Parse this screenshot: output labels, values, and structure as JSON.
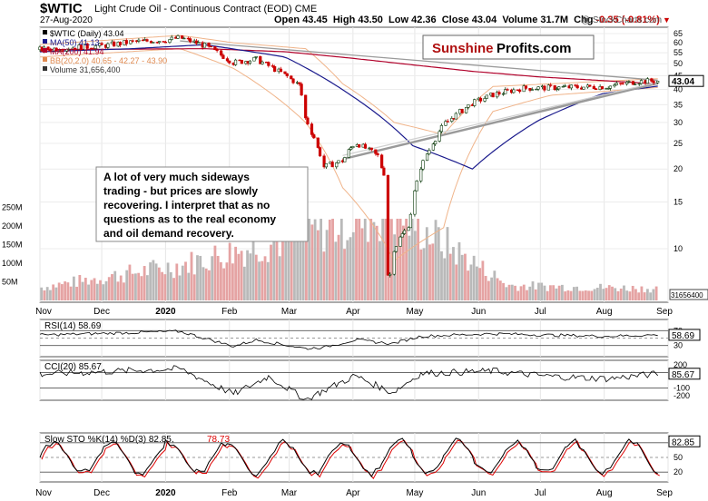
{
  "header": {
    "symbol": "$WTIC",
    "name": "Light Crude Oil - Continuous Contract (EOD)",
    "exchange": "CME",
    "date": "27-Aug-2020",
    "open_label": "Open",
    "open": "43.45",
    "high_label": "High",
    "high": "43.50",
    "low_label": "Low",
    "low": "42.36",
    "close_label": "Close",
    "close": "43.04",
    "volume_label": "Volume",
    "volume": "31.7M",
    "chg_label": "Chg",
    "chg": "-0.35 (-0.81%)",
    "copyright": "@ StockCharts.com"
  },
  "logo": {
    "part1": "Sunshine",
    "part2": "Profits.com"
  },
  "annotation": {
    "lines": [
      "A lot of very much sideways",
      "trading - but prices are slowly",
      "recovering. I interpret that as no",
      "questions as to the real economy",
      "and oil demand recovery."
    ]
  },
  "legend": [
    {
      "text": "$WTIC (Daily) 43.04",
      "color": "#000000"
    },
    {
      "text": "MA(50) 41.13",
      "color": "#1a1a8c"
    },
    {
      "text": "MA(200) 41.94",
      "color": "#b0002a"
    },
    {
      "text": "BB(20,2.0) 40.65 - 42.27 - 43.90",
      "color": "#e08a50"
    },
    {
      "text": "Volume 31,656,400",
      "color": "#333333"
    }
  ],
  "price_axis": {
    "ticks": [
      "65",
      "60",
      "55",
      "50",
      "45",
      "40",
      "35",
      "30",
      "25",
      "20",
      "15",
      "10"
    ],
    "last": "43.04"
  },
  "volume_axis": {
    "ticks": [
      "250M",
      "200M",
      "150M",
      "100M",
      "50M"
    ],
    "last": "31656400"
  },
  "months": [
    "Nov",
    "Dec",
    "2020",
    "Feb",
    "Mar",
    "Apr",
    "May",
    "Jun",
    "Jul",
    "Aug",
    "Sep"
  ],
  "rsi": {
    "label": "RSI(14) 58.69",
    "ticks": [
      "70",
      "30"
    ],
    "last": "58.69"
  },
  "cci": {
    "label": "CCI(20) 85.67",
    "ticks": [
      "200",
      "100",
      "-100",
      "-200"
    ],
    "last": "85.67"
  },
  "sto": {
    "label_k": "Slow STO %K(14) %D(3) 82.85,",
    "label_d": "78.73",
    "ticks": [
      "80",
      "50",
      "20"
    ],
    "last": "82.85"
  },
  "colors": {
    "up": "#0a3a0a",
    "down": "#cc0000",
    "ma50": "#1a1a8c",
    "ma200": "#b0002a",
    "bb": "#f0b48a",
    "trend": "#9a9a9a",
    "volume_down": "#e5a3a3",
    "volume_up": "#b9b9b9",
    "rsi_fill": "#9a5a5a",
    "cci_up": "#3a7a3a",
    "cci_down": "#9a5a5a",
    "sto_d": "#dd0000"
  },
  "chart_data": {
    "type": "line",
    "title": "$WTIC Light Crude Oil - Continuous Contract (EOD) CME",
    "x_range": [
      "2019-11-01",
      "2020-09-01"
    ],
    "ylim": [
      8,
      70
    ],
    "price_scale": "log",
    "series": [
      {
        "name": "$WTIC (Daily)",
        "x": [
          "2019-11-01",
          "2019-11-15",
          "2019-12-02",
          "2019-12-16",
          "2020-01-02",
          "2020-01-08",
          "2020-01-20",
          "2020-02-03",
          "2020-02-14",
          "2020-02-28",
          "2020-03-06",
          "2020-03-09",
          "2020-03-18",
          "2020-03-27",
          "2020-04-02",
          "2020-04-13",
          "2020-04-17",
          "2020-04-20",
          "2020-04-21",
          "2020-04-28",
          "2020-05-04",
          "2020-05-15",
          "2020-05-29",
          "2020-06-08",
          "2020-06-22",
          "2020-07-06",
          "2020-07-20",
          "2020-08-03",
          "2020-08-17",
          "2020-08-27"
        ],
        "y": [
          56.5,
          57.5,
          58.5,
          60.5,
          61.5,
          62.7,
          58.5,
          50.5,
          52.0,
          45.3,
          41.5,
          31.1,
          20.4,
          21.5,
          25.3,
          22.4,
          18.3,
          -37.6,
          10.0,
          12.3,
          20.4,
          29.4,
          35.5,
          38.2,
          40.4,
          40.6,
          40.8,
          41.0,
          42.9,
          43.04
        ]
      },
      {
        "name": "MA(50)",
        "x": [
          "2019-11-01",
          "2019-12-16",
          "2020-01-20",
          "2020-02-28",
          "2020-03-31",
          "2020-04-30",
          "2020-05-29",
          "2020-06-30",
          "2020-07-31",
          "2020-08-27"
        ],
        "y": [
          55.5,
          57.0,
          59.0,
          53.0,
          38.0,
          24.5,
          20.0,
          30.5,
          38.5,
          41.13
        ]
      },
      {
        "name": "MA(200)",
        "x": [
          "2019-11-01",
          "2020-01-20",
          "2020-02-28",
          "2020-03-31",
          "2020-04-30",
          "2020-05-29",
          "2020-06-30",
          "2020-07-31",
          "2020-08-27"
        ],
        "y": [
          56.5,
          57.0,
          55.5,
          52.5,
          49.5,
          46.8,
          44.6,
          43.2,
          41.94
        ]
      },
      {
        "name": "Volume",
        "x": [
          "2019-11-01",
          "2020-01-08",
          "2020-03-09",
          "2020-04-21",
          "2020-06-15",
          "2020-08-27"
        ],
        "y": [
          35000000,
          95000000,
          180000000,
          240000000,
          40000000,
          31656400
        ]
      }
    ],
    "indicators": {
      "rsi14": {
        "last": 58.69,
        "overbought": 70,
        "oversold": 30
      },
      "cci20": {
        "last": 85.67,
        "levels": [
          200,
          100,
          -100,
          -200
        ]
      },
      "slow_sto": {
        "k14": 82.85,
        "d3": 78.73,
        "levels": [
          80,
          50,
          20
        ]
      }
    }
  }
}
